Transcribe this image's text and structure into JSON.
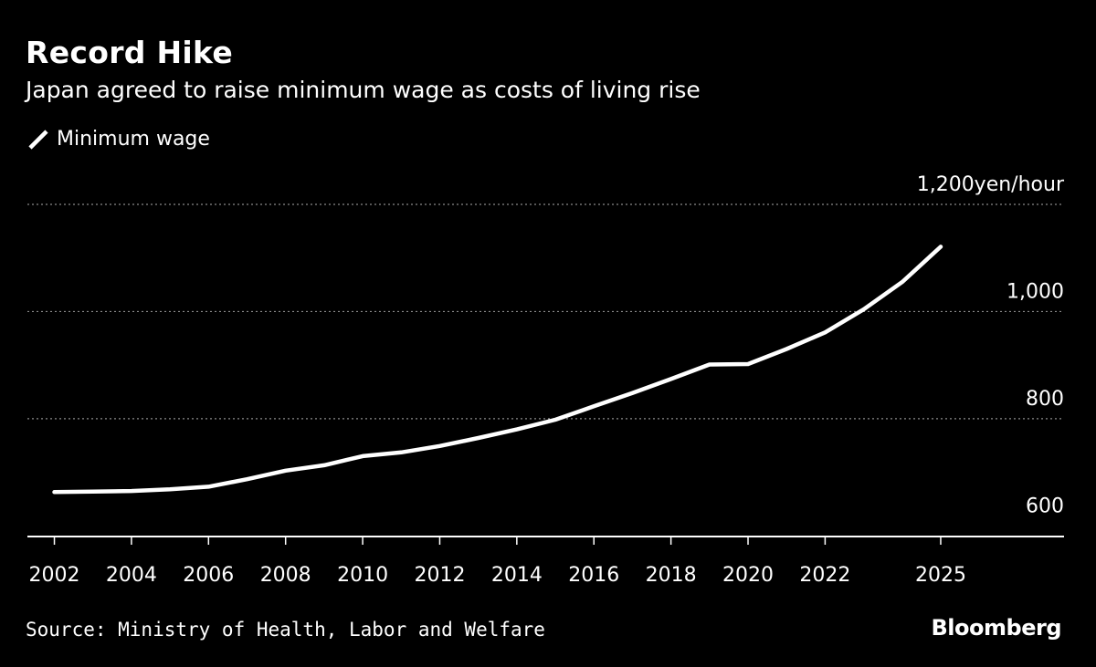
{
  "title": "Record Hike",
  "subtitle": "Japan agreed to raise minimum wage as costs of living rise",
  "legend_label": "Minimum wage",
  "source": "Source: Ministry of Health, Labor and Welfare",
  "brand": "Bloomberg",
  "colors": {
    "background": "#000000",
    "line": "#ffffff",
    "grid": "#8a8a8a"
  },
  "chart_data": {
    "type": "line",
    "title": "Record Hike",
    "subtitle": "Japan agreed to raise minimum wage as costs of living rise",
    "xlabel": "",
    "ylabel": "",
    "y_unit": "yen/hour",
    "xlim": [
      2001.3,
      2028.2
    ],
    "ylim": [
      580,
      1200
    ],
    "grid": true,
    "legend_position": "top-left",
    "y_axis_side": "right",
    "x_ticks": [
      2002,
      2004,
      2006,
      2008,
      2010,
      2012,
      2014,
      2016,
      2018,
      2020,
      2022,
      2025
    ],
    "y_ticks": [
      {
        "value": 600,
        "label": "600"
      },
      {
        "value": 800,
        "label": "800"
      },
      {
        "value": 1000,
        "label": "1,000"
      },
      {
        "value": 1200,
        "label": "1,200yen/hour"
      }
    ],
    "series": [
      {
        "name": "Minimum wage",
        "x": [
          2002,
          2003,
          2004,
          2005,
          2006,
          2007,
          2008,
          2009,
          2010,
          2011,
          2012,
          2013,
          2014,
          2015,
          2016,
          2017,
          2018,
          2019,
          2020,
          2021,
          2022,
          2023,
          2024,
          2025
        ],
        "values": [
          663,
          664,
          665,
          668,
          673,
          687,
          703,
          713,
          730,
          737,
          749,
          764,
          780,
          798,
          823,
          848,
          874,
          901,
          902,
          930,
          961,
          1004,
          1055,
          1121
        ]
      }
    ]
  }
}
